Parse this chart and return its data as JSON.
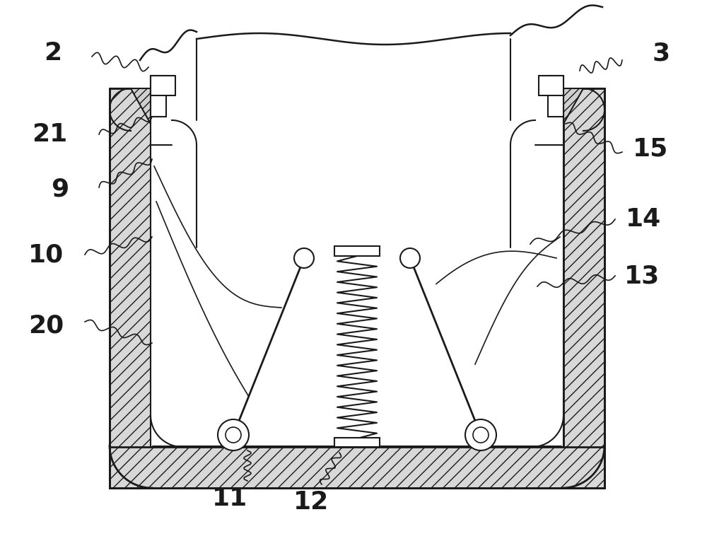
{
  "bg_color": "#ffffff",
  "line_color": "#1a1a1a",
  "label_color": "#1a1a1a",
  "fig_width": 10.0,
  "fig_height": 7.65,
  "label_fontsize": 26,
  "lw_main": 1.5,
  "lw_thick": 2.0
}
